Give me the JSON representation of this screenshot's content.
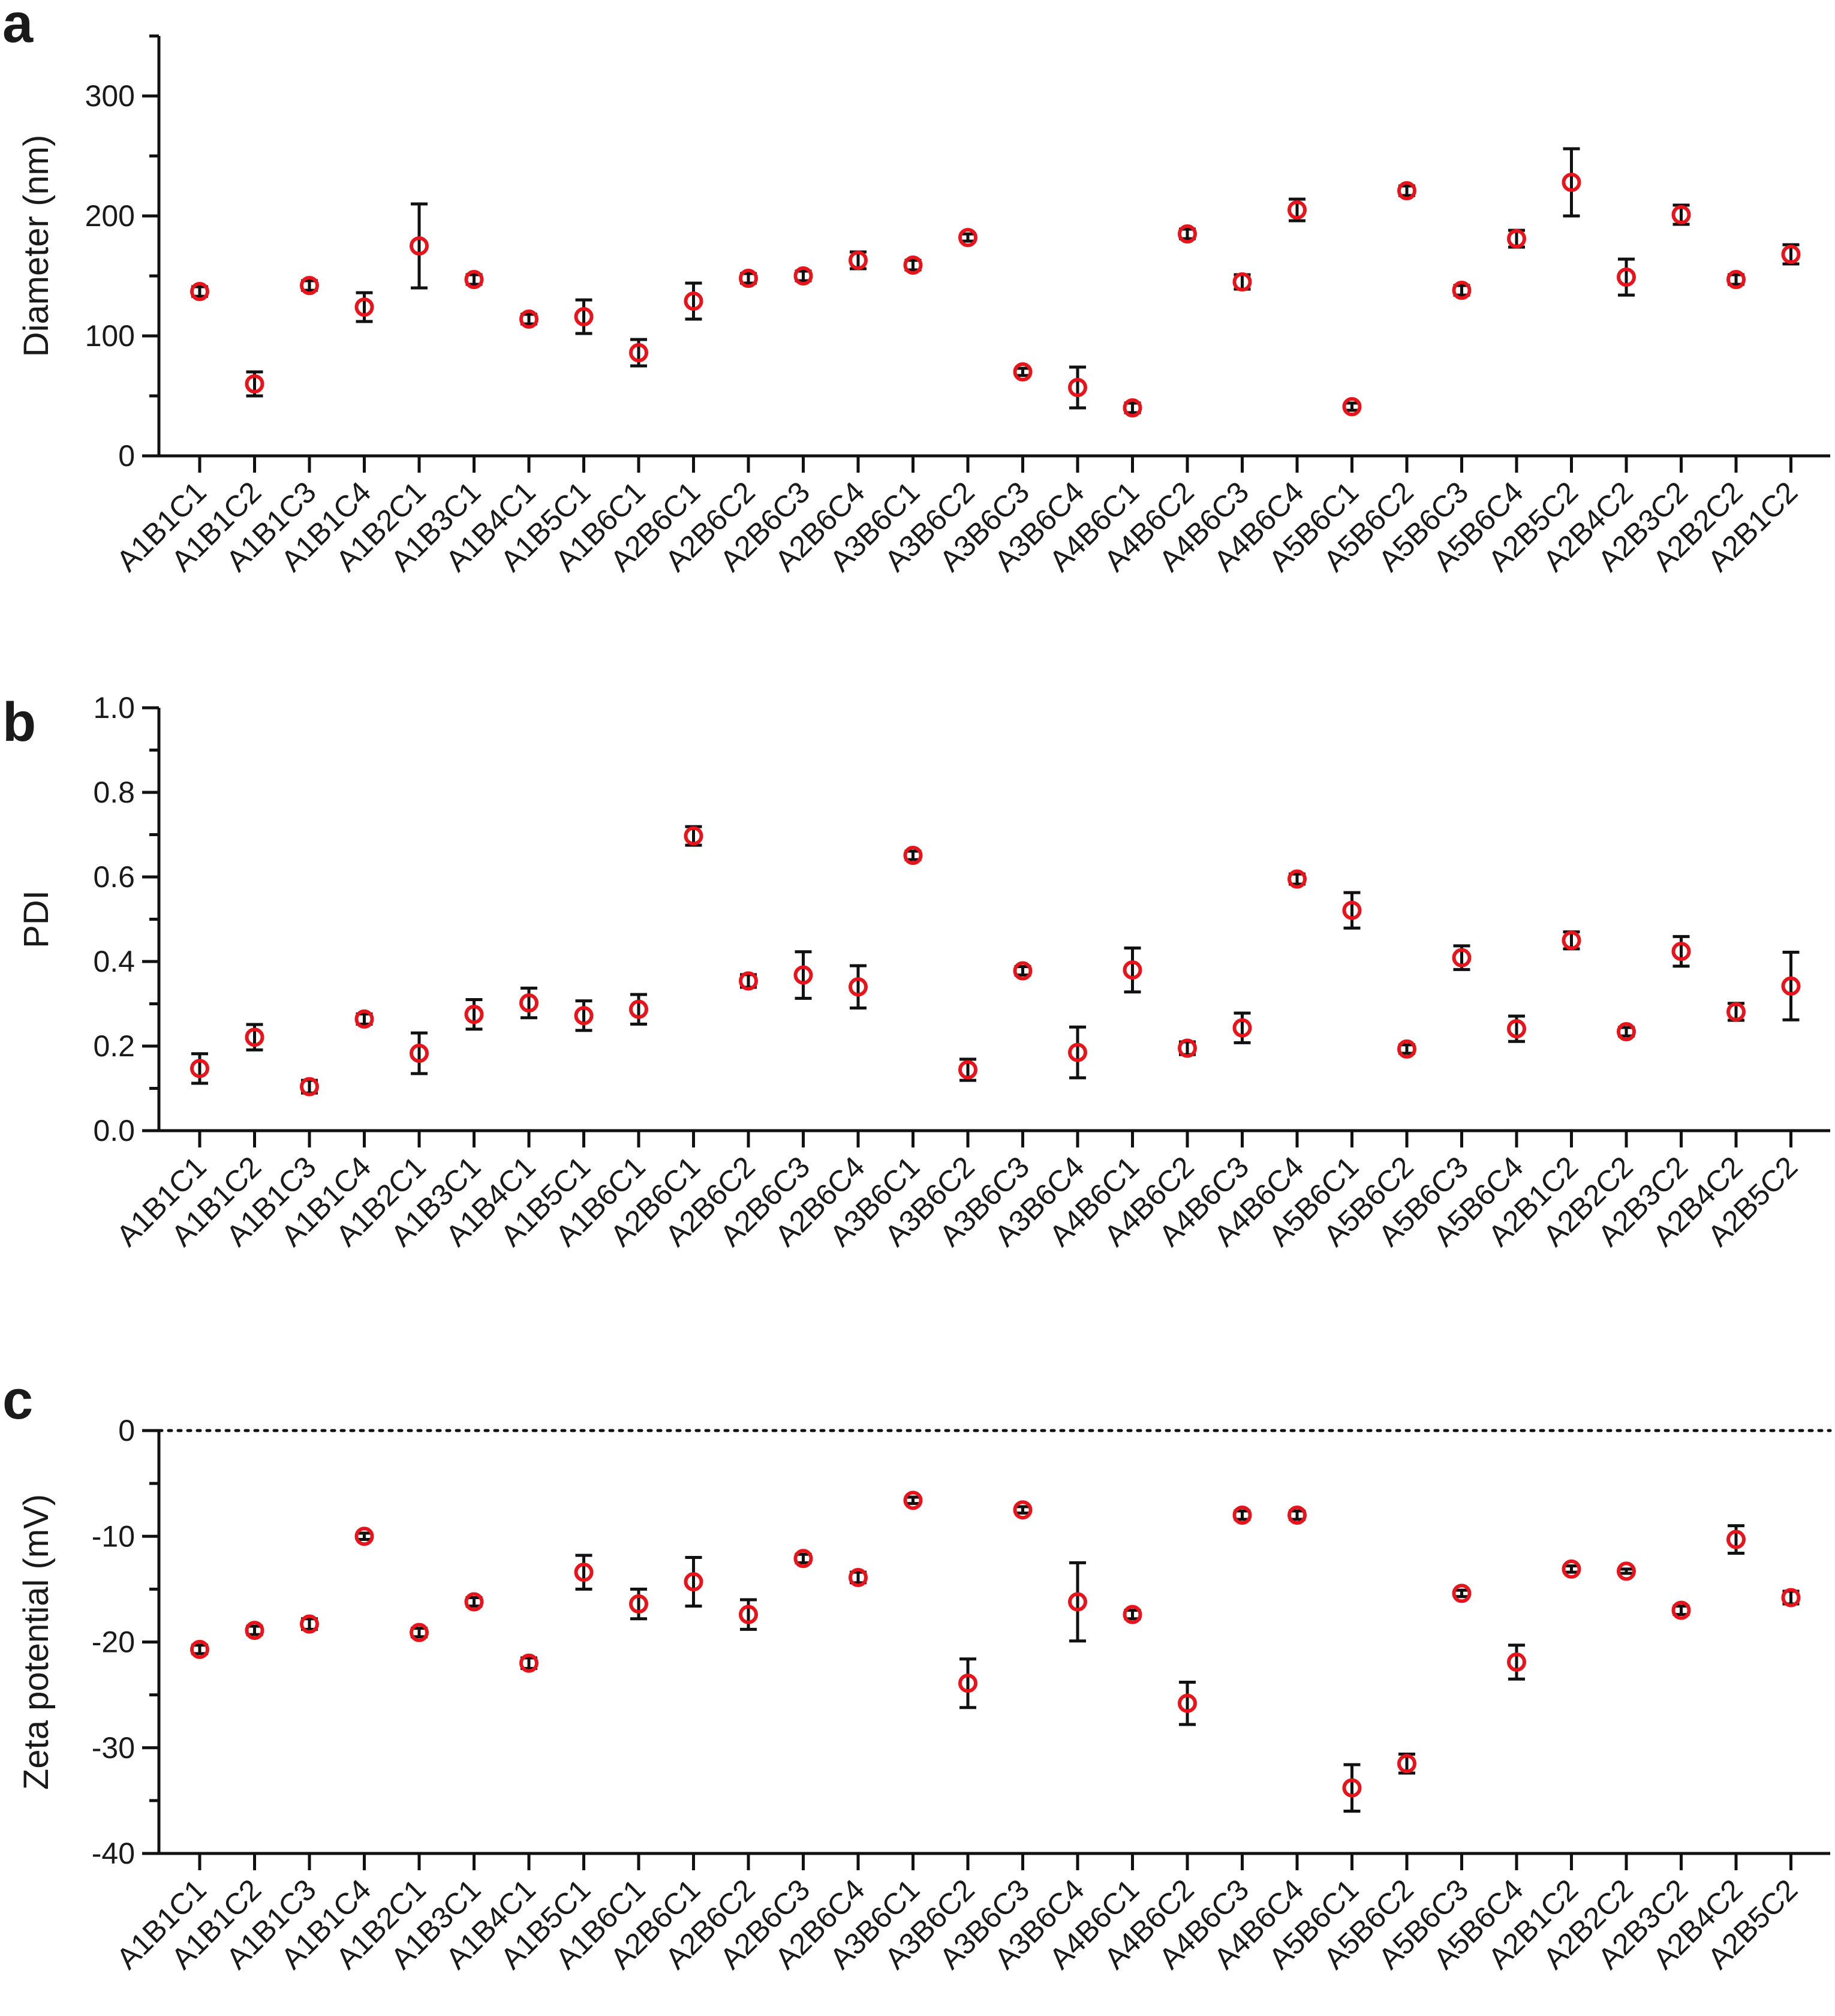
{
  "figure": {
    "panels": [
      "a",
      "b",
      "c"
    ]
  },
  "colors": {
    "marker": "#e8141b",
    "errorbar": "#111111",
    "axis": "#111111",
    "text": "#1a1a1a"
  },
  "chart_data": [
    {
      "type": "scatter",
      "panel": "a",
      "ylabel": "Diameter (nm)",
      "xlabel": "",
      "ylim": [
        0,
        350
      ],
      "yticks": [
        0,
        100,
        200,
        300
      ],
      "minor_ticks": true,
      "zero_line": false,
      "categories": [
        "A1B1C1",
        "A1B1C2",
        "A1B1C3",
        "A1B1C4",
        "A1B2C1",
        "A1B3C1",
        "A1B4C1",
        "A1B5C1",
        "A1B6C1",
        "A2B6C1",
        "A2B6C2",
        "A2B6C3",
        "A2B6C4",
        "A3B6C1",
        "A3B6C2",
        "A3B6C3",
        "A3B6C4",
        "A4B6C1",
        "A4B6C2",
        "A4B6C3",
        "A4B6C4",
        "A5B6C1",
        "A5B6C2",
        "A5B6C3",
        "A5B6C4",
        "A2B5C2",
        "A2B4C2",
        "A2B3C2",
        "A2B2C2",
        "A2B1C2"
      ],
      "values": [
        137,
        60,
        142,
        124,
        175,
        147,
        114,
        116,
        86,
        129,
        148,
        150,
        163,
        159,
        182,
        70,
        57,
        40,
        185,
        145,
        205,
        41,
        221,
        138,
        181,
        228,
        149,
        201,
        147,
        168
      ],
      "errors": [
        4,
        10,
        4,
        12,
        35,
        4,
        4,
        14,
        11,
        15,
        4,
        4,
        7,
        4,
        3,
        3,
        17,
        4,
        4,
        6,
        9,
        3,
        4,
        4,
        7,
        28,
        15,
        8,
        4,
        8
      ]
    },
    {
      "type": "scatter",
      "panel": "b",
      "ylabel": "PDI",
      "xlabel": "",
      "ylim": [
        0,
        1.0
      ],
      "yticks": [
        0.0,
        0.2,
        0.4,
        0.6,
        0.8,
        1.0
      ],
      "minor_ticks": true,
      "zero_line": false,
      "categories": [
        "A1B1C1",
        "A1B1C2",
        "A1B1C3",
        "A1B1C4",
        "A1B2C1",
        "A1B3C1",
        "A1B4C1",
        "A1B5C1",
        "A1B6C1",
        "A2B6C1",
        "A2B6C2",
        "A2B6C3",
        "A2B6C4",
        "A3B6C1",
        "A3B6C2",
        "A3B6C3",
        "A3B6C4",
        "A4B6C1",
        "A4B6C2",
        "A4B6C3",
        "A4B6C4",
        "A5B6C1",
        "A5B6C2",
        "A5B6C3",
        "A5B6C4",
        "A2B1C2",
        "A2B2C2",
        "A2B3C2",
        "A2B4C2",
        "A2B5C2"
      ],
      "values": [
        0.147,
        0.221,
        0.104,
        0.264,
        0.183,
        0.275,
        0.302,
        0.272,
        0.287,
        0.697,
        0.354,
        0.368,
        0.34,
        0.651,
        0.144,
        0.378,
        0.185,
        0.38,
        0.195,
        0.243,
        0.595,
        0.521,
        0.193,
        0.409,
        0.241,
        0.45,
        0.234,
        0.424,
        0.281,
        0.342
      ],
      "errors": [
        0.035,
        0.03,
        0.015,
        0.012,
        0.048,
        0.035,
        0.035,
        0.035,
        0.035,
        0.022,
        0.015,
        0.055,
        0.05,
        0.01,
        0.025,
        0.01,
        0.06,
        0.052,
        0.015,
        0.035,
        0.012,
        0.042,
        0.01,
        0.028,
        0.03,
        0.02,
        0.01,
        0.035,
        0.02,
        0.08
      ]
    },
    {
      "type": "scatter",
      "panel": "c",
      "ylabel": "Zeta potential (mV)",
      "xlabel": "",
      "ylim": [
        -40,
        0
      ],
      "yticks": [
        0,
        -10,
        -20,
        -30,
        -40
      ],
      "minor_ticks": true,
      "zero_line": true,
      "categories": [
        "A1B1C1",
        "A1B1C2",
        "A1B1C3",
        "A1B1C4",
        "A1B2C1",
        "A1B3C1",
        "A1B4C1",
        "A1B5C1",
        "A1B6C1",
        "A2B6C1",
        "A2B6C2",
        "A2B6C3",
        "A2B6C4",
        "A3B6C1",
        "A3B6C2",
        "A3B6C3",
        "A3B6C4",
        "A4B6C1",
        "A4B6C2",
        "A4B6C3",
        "A4B6C4",
        "A5B6C1",
        "A5B6C2",
        "A5B6C3",
        "A5B6C4",
        "A2B1C2",
        "A2B2C2",
        "A2B3C2",
        "A2B4C2",
        "A2B5C2"
      ],
      "values": [
        -20.7,
        -18.9,
        -18.3,
        -10.0,
        -19.1,
        -16.2,
        -22.0,
        -13.4,
        -16.4,
        -14.3,
        -17.4,
        -12.1,
        -13.9,
        -6.6,
        -23.9,
        -7.5,
        -16.2,
        -17.4,
        -25.8,
        -8.0,
        -8.0,
        -33.8,
        -31.5,
        -15.4,
        -21.9,
        -13.1,
        -13.3,
        -17.0,
        -10.3,
        -15.8
      ],
      "errors": [
        0.4,
        0.4,
        0.5,
        0.3,
        0.4,
        0.4,
        0.5,
        1.6,
        1.4,
        2.3,
        1.4,
        0.4,
        0.5,
        0.3,
        2.3,
        0.3,
        3.7,
        0.4,
        2.0,
        0.4,
        0.4,
        2.2,
        0.9,
        0.3,
        1.6,
        0.3,
        0.2,
        0.4,
        1.3,
        0.6
      ]
    }
  ]
}
